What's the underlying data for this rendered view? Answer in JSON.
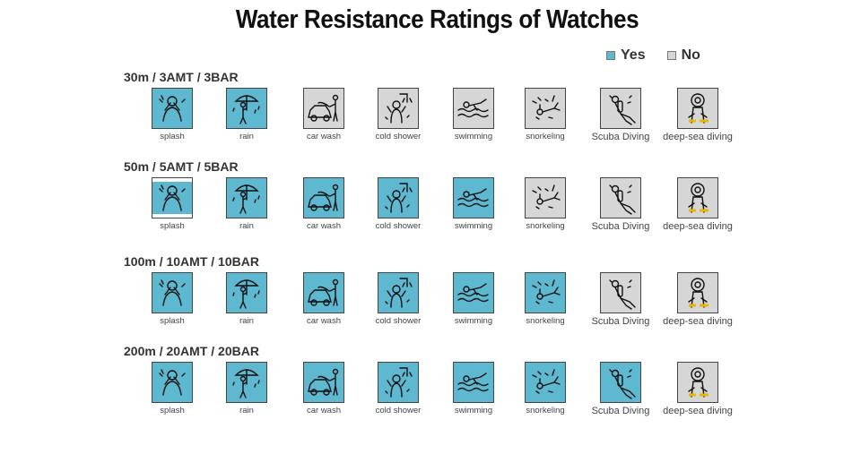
{
  "title": "Water Resistance Ratings of Watches",
  "legend": {
    "yes_label": "Yes",
    "no_label": "No",
    "yes_color": "#5db8d0",
    "no_color": "#d6d6d6"
  },
  "activities": [
    "splash",
    "rain",
    "car wash",
    "cold shower",
    "swimming",
    "snorkeling",
    "Scuba Diving",
    "deep-sea diving"
  ],
  "rows": [
    {
      "label": "30m / 3AMT / 3BAR",
      "ratings": [
        "yes",
        "yes",
        "no",
        "no",
        "no",
        "no",
        "no",
        "no"
      ]
    },
    {
      "label": "50m / 5AMT / 5BAR",
      "ratings": [
        "partial",
        "yes",
        "yes",
        "yes",
        "yes",
        "no",
        "no",
        "no"
      ]
    },
    {
      "label": "100m / 10AMT / 10BAR",
      "ratings": [
        "yes",
        "yes",
        "yes",
        "yes",
        "yes",
        "yes",
        "no",
        "no"
      ]
    },
    {
      "label": "200m / 20AMT / 20BAR",
      "ratings": [
        "yes",
        "yes",
        "yes",
        "yes",
        "yes",
        "yes",
        "yes",
        "no"
      ]
    }
  ],
  "icons": [
    "splash-icon",
    "rain-icon",
    "car-wash-icon",
    "cold-shower-icon",
    "swimming-icon",
    "snorkeling-icon",
    "scuba-diving-icon",
    "deep-sea-diving-icon"
  ]
}
